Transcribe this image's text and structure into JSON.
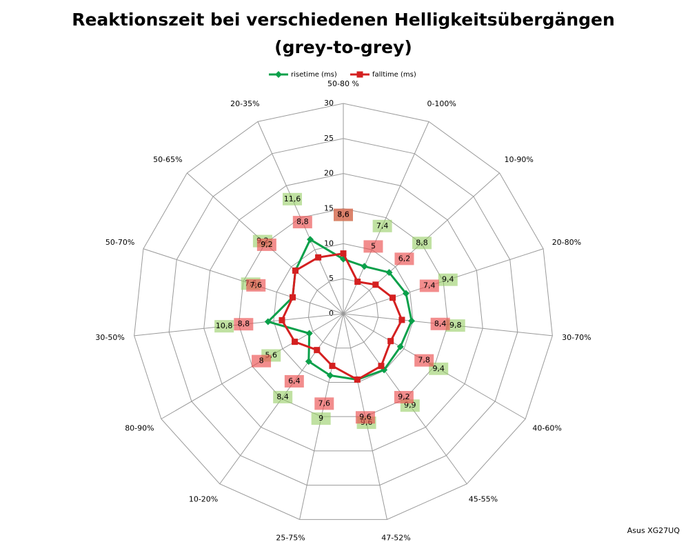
{
  "chart_data": {
    "type": "radar",
    "title": [
      "Reaktionszeit bei verschiedenen Helligkeitsübergängen",
      "(grey-to-grey)"
    ],
    "annotation": "Asus XG27UQ",
    "categories": [
      "50-80 %",
      "0-100%",
      "10-90%",
      "20-80%",
      "30-70%",
      "40-60%",
      "45-55%",
      "47-52%",
      "25-75%",
      "10-20%",
      "80-90%",
      "30-50%",
      "50-70%",
      "50-65%",
      "20-35%"
    ],
    "series": [
      {
        "name": "risetime (ms)",
        "color": "#0aa04a",
        "marker": "diamond",
        "values": [
          7.8,
          7.4,
          8.8,
          9.4,
          9.8,
          9.4,
          9.9,
          9.6,
          9,
          8.4,
          5.6,
          10.8,
          7.6,
          9.2,
          11.6
        ],
        "value_labels": [
          "7,8",
          "7,4",
          "8,8",
          "9,4",
          "9,8",
          "9,4",
          "9,9",
          "9,6",
          "9",
          "8,4",
          "5,6",
          "10,8",
          "7,6",
          "9,2",
          "11,6"
        ]
      },
      {
        "name": "falltime (ms)",
        "color": "#d42020",
        "marker": "square",
        "values": [
          8.6,
          5,
          6.2,
          7.4,
          8.4,
          7.8,
          9.2,
          9.6,
          7.6,
          6.4,
          8,
          8.8,
          7.6,
          9.2,
          8.8
        ],
        "value_labels": [
          "8,6",
          "5",
          "6,2",
          "7,4",
          "8,4",
          "7,8",
          "9,2",
          "9,6",
          "7,6",
          "6,4",
          "8",
          "8,8",
          "7,6",
          "9,2",
          "8,8"
        ]
      }
    ],
    "ylim": [
      0,
      30
    ],
    "yticks": [
      0,
      5,
      10,
      15,
      20,
      25,
      30
    ],
    "grid": true,
    "legend": "top"
  }
}
